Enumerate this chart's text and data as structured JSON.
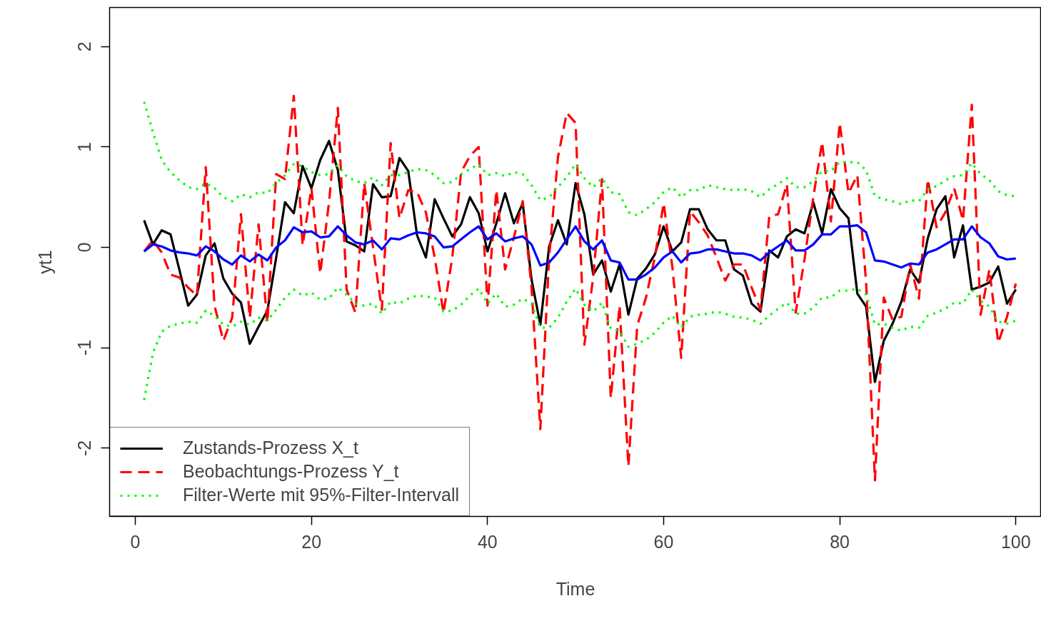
{
  "chart_data": {
    "type": "line",
    "xlabel": "Time",
    "ylabel": "yt1",
    "x": [
      1,
      2,
      3,
      4,
      5,
      6,
      7,
      8,
      9,
      10,
      11,
      12,
      13,
      14,
      15,
      16,
      17,
      18,
      19,
      20,
      21,
      22,
      23,
      24,
      25,
      26,
      27,
      28,
      29,
      30,
      31,
      32,
      33,
      34,
      35,
      36,
      37,
      38,
      39,
      40,
      41,
      42,
      43,
      44,
      45,
      46,
      47,
      48,
      49,
      50,
      51,
      52,
      53,
      54,
      55,
      56,
      57,
      58,
      59,
      60,
      61,
      62,
      63,
      64,
      65,
      66,
      67,
      68,
      69,
      70,
      71,
      72,
      73,
      74,
      75,
      76,
      77,
      78,
      79,
      80,
      81,
      82,
      83,
      84,
      85,
      86,
      87,
      88,
      89,
      90,
      91,
      92,
      93,
      94,
      95,
      96,
      97,
      98,
      99,
      100
    ],
    "xlim": [
      -2.92,
      102.9
    ],
    "xticks": [
      0,
      20,
      40,
      60,
      80,
      100
    ],
    "ylim": [
      -2.68,
      2.39
    ],
    "yticks": [
      -2,
      -1,
      0,
      1,
      2
    ],
    "grid": false,
    "legend": "bottom left",
    "series": [
      {
        "name": "Zustands-Prozess X_t",
        "color": "#000000",
        "line_style": "solid",
        "values": [
          0.27,
          0.03,
          0.17,
          0.13,
          -0.22,
          -0.58,
          -0.47,
          -0.08,
          0.04,
          -0.31,
          -0.46,
          -0.55,
          -0.96,
          -0.79,
          -0.63,
          -0.1,
          0.45,
          0.34,
          0.81,
          0.59,
          0.87,
          1.06,
          0.77,
          0.06,
          0.02,
          -0.04,
          0.63,
          0.5,
          0.51,
          0.89,
          0.76,
          0.12,
          -0.1,
          0.48,
          0.29,
          0.11,
          0.23,
          0.5,
          0.34,
          -0.04,
          0.24,
          0.54,
          0.24,
          0.44,
          -0.32,
          -0.77,
          0.01,
          0.27,
          0.03,
          0.64,
          0.33,
          -0.27,
          -0.13,
          -0.44,
          -0.17,
          -0.67,
          -0.31,
          -0.21,
          -0.07,
          0.21,
          -0.04,
          0.05,
          0.38,
          0.38,
          0.18,
          0.07,
          0.07,
          -0.22,
          -0.28,
          -0.56,
          -0.64,
          -0.03,
          -0.1,
          0.11,
          0.18,
          0.14,
          0.45,
          0.14,
          0.58,
          0.39,
          0.29,
          -0.46,
          -0.59,
          -1.34,
          -0.93,
          -0.76,
          -0.54,
          -0.22,
          -0.35,
          0.09,
          0.38,
          0.51,
          -0.1,
          0.22,
          -0.42,
          -0.39,
          -0.35,
          -0.19,
          -0.56,
          -0.42
        ]
      },
      {
        "name": "Beobachtungs-Prozess Y_t",
        "color": "#ff0000",
        "line_style": "dashed",
        "values": [
          -0.04,
          0.07,
          -0.05,
          -0.27,
          -0.3,
          -0.4,
          -0.48,
          0.8,
          -0.58,
          -0.93,
          -0.7,
          0.33,
          -0.7,
          0.23,
          -0.75,
          0.73,
          0.68,
          1.51,
          0.02,
          0.59,
          -0.26,
          0.45,
          1.39,
          -0.42,
          -0.65,
          0.64,
          0.0,
          -0.62,
          1.04,
          0.29,
          0.57,
          0.55,
          0.35,
          -0.1,
          -0.65,
          -0.1,
          0.75,
          0.91,
          1.0,
          -0.58,
          0.57,
          -0.22,
          0.1,
          0.46,
          -0.4,
          -1.81,
          -0.1,
          0.9,
          1.34,
          1.24,
          -0.97,
          -0.3,
          0.68,
          -1.5,
          -0.58,
          -2.18,
          -0.78,
          -0.5,
          -0.1,
          0.44,
          -0.2,
          -1.1,
          0.36,
          0.25,
          0.12,
          -0.1,
          -0.33,
          -0.17,
          -0.17,
          -0.4,
          -0.62,
          0.31,
          0.33,
          0.63,
          -0.65,
          -0.12,
          0.5,
          1.05,
          0.26,
          1.24,
          0.54,
          0.72,
          -0.35,
          -2.32,
          -0.5,
          -0.72,
          -0.69,
          -0.17,
          -0.51,
          0.68,
          0.2,
          0.35,
          0.59,
          0.27,
          1.42,
          -0.67,
          -0.22,
          -0.95,
          -0.69,
          -0.36
        ]
      },
      {
        "color": "#0000ff",
        "line_style": "solid",
        "values": [
          -0.04,
          0.03,
          0.01,
          -0.03,
          -0.05,
          -0.06,
          -0.08,
          0.01,
          -0.04,
          -0.12,
          -0.17,
          -0.08,
          -0.14,
          -0.07,
          -0.13,
          0.0,
          0.07,
          0.2,
          0.15,
          0.16,
          0.1,
          0.11,
          0.21,
          0.12,
          0.05,
          0.03,
          0.07,
          -0.02,
          0.09,
          0.08,
          0.12,
          0.15,
          0.14,
          0.11,
          0.0,
          0.01,
          0.08,
          0.15,
          0.21,
          0.08,
          0.14,
          0.06,
          0.09,
          0.11,
          0.03,
          -0.18,
          -0.15,
          -0.05,
          0.08,
          0.21,
          0.06,
          -0.02,
          0.07,
          -0.13,
          -0.15,
          -0.32,
          -0.32,
          -0.27,
          -0.2,
          -0.1,
          -0.04,
          -0.15,
          -0.06,
          -0.05,
          -0.02,
          -0.02,
          -0.04,
          -0.06,
          -0.06,
          -0.08,
          -0.13,
          -0.05,
          0.01,
          0.07,
          -0.03,
          -0.03,
          0.03,
          0.13,
          0.13,
          0.21,
          0.21,
          0.22,
          0.15,
          -0.13,
          -0.14,
          -0.17,
          -0.2,
          -0.16,
          -0.17,
          -0.05,
          -0.02,
          0.03,
          0.08,
          0.08,
          0.21,
          0.1,
          0.04,
          -0.09,
          -0.12,
          -0.11
        ]
      },
      {
        "name": "Filter-Werte mit 95%-Filter-Intervall",
        "color": "#00ff00",
        "line_style": "dotted",
        "values": [
          1.45,
          1.15,
          0.87,
          0.75,
          0.67,
          0.6,
          0.58,
          0.64,
          0.59,
          0.5,
          0.46,
          0.53,
          0.5,
          0.55,
          0.54,
          0.64,
          0.72,
          0.83,
          0.81,
          0.75,
          0.72,
          0.73,
          0.82,
          0.71,
          0.66,
          0.64,
          0.7,
          0.62,
          0.72,
          0.72,
          0.75,
          0.78,
          0.77,
          0.72,
          0.64,
          0.65,
          0.73,
          0.78,
          0.83,
          0.72,
          0.74,
          0.71,
          0.75,
          0.73,
          0.62,
          0.47,
          0.5,
          0.6,
          0.7,
          0.83,
          0.69,
          0.6,
          0.69,
          0.55,
          0.53,
          0.35,
          0.32,
          0.38,
          0.45,
          0.55,
          0.6,
          0.5,
          0.57,
          0.57,
          0.62,
          0.6,
          0.58,
          0.57,
          0.58,
          0.56,
          0.5,
          0.58,
          0.63,
          0.69,
          0.6,
          0.6,
          0.66,
          0.76,
          0.76,
          0.85,
          0.85,
          0.85,
          0.77,
          0.51,
          0.48,
          0.46,
          0.43,
          0.47,
          0.46,
          0.58,
          0.61,
          0.67,
          0.71,
          0.72,
          0.84,
          0.73,
          0.67,
          0.56,
          0.52,
          0.51
        ]
      },
      {
        "color": "#00ff00",
        "line_style": "dotted",
        "values": [
          -1.52,
          -1.05,
          -0.84,
          -0.78,
          -0.76,
          -0.74,
          -0.75,
          -0.63,
          -0.68,
          -0.77,
          -0.79,
          -0.74,
          -0.77,
          -0.7,
          -0.73,
          -0.62,
          -0.5,
          -0.42,
          -0.48,
          -0.45,
          -0.52,
          -0.51,
          -0.4,
          -0.47,
          -0.56,
          -0.58,
          -0.56,
          -0.66,
          -0.54,
          -0.56,
          -0.51,
          -0.48,
          -0.49,
          -0.5,
          -0.64,
          -0.63,
          -0.57,
          -0.48,
          -0.41,
          -0.56,
          -0.46,
          -0.59,
          -0.57,
          -0.51,
          -0.56,
          -0.8,
          -0.8,
          -0.7,
          -0.54,
          -0.41,
          -0.57,
          -0.64,
          -0.55,
          -0.81,
          -0.83,
          -0.99,
          -0.96,
          -0.92,
          -0.85,
          -0.75,
          -0.68,
          -0.8,
          -0.69,
          -0.67,
          -0.66,
          -0.64,
          -0.66,
          -0.69,
          -0.7,
          -0.72,
          -0.76,
          -0.68,
          -0.61,
          -0.55,
          -0.66,
          -0.66,
          -0.6,
          -0.5,
          -0.5,
          -0.43,
          -0.43,
          -0.41,
          -0.47,
          -0.77,
          -0.76,
          -0.8,
          -0.83,
          -0.79,
          -0.8,
          -0.68,
          -0.65,
          -0.61,
          -0.55,
          -0.56,
          -0.42,
          -0.53,
          -0.59,
          -0.74,
          -0.76,
          -0.73
        ]
      }
    ]
  }
}
